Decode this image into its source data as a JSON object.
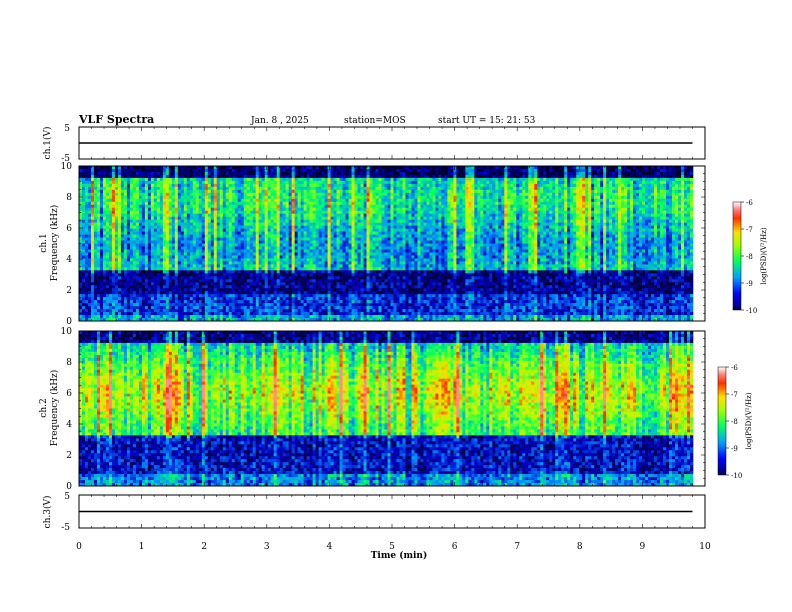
{
  "header": {
    "title": "VLF Spectra",
    "date": "Jan. 8 , 2025",
    "station": "station=MOS",
    "start": "start UT = 15: 21: 53"
  },
  "chart_data": [
    {
      "id": "ch1_voltage",
      "type": "line",
      "ylabel": "ch.1(V)",
      "ylim": [
        -5,
        5
      ],
      "yticks": [
        "5",
        "-5"
      ],
      "x": [
        0,
        9.8
      ],
      "y": [
        0,
        0
      ]
    },
    {
      "id": "ch1_spectrogram",
      "type": "heatmap",
      "ylabel_top": "ch.1",
      "ylabel": "Frequency (kHz)",
      "ylim": [
        0,
        10
      ],
      "yticks": [
        "0",
        "2",
        "4",
        "6",
        "8",
        "10"
      ],
      "x_range": [
        0,
        9.8
      ],
      "colorbar": {
        "label": "log(PSD)(V²/Hz)",
        "range": [
          -10,
          -6
        ],
        "ticks": [
          "-6",
          "-7",
          "-8",
          "-9",
          "-10"
        ]
      }
    },
    {
      "id": "ch2_spectrogram",
      "type": "heatmap",
      "ylabel_top": "ch.2",
      "ylabel": "Frequency (kHz)",
      "ylim": [
        0,
        10
      ],
      "yticks": [
        "0",
        "2",
        "4",
        "6",
        "8",
        "10"
      ],
      "x_range": [
        0,
        9.8
      ],
      "colorbar": {
        "label": "log(PSD)(V²/Hz)",
        "range": [
          -10,
          -6
        ],
        "ticks": [
          "-6",
          "-7",
          "-8",
          "-9",
          "-10"
        ]
      }
    },
    {
      "id": "ch3_voltage",
      "type": "line",
      "ylabel": "ch.3(V)",
      "ylim": [
        -5,
        5
      ],
      "yticks": [
        "5",
        "-5"
      ],
      "x": [
        0,
        9.8
      ],
      "y": [
        0,
        0
      ]
    }
  ],
  "xaxis": {
    "label": "Time (min)",
    "xlim": [
      0,
      10
    ],
    "ticks": [
      "0",
      "1",
      "2",
      "3",
      "4",
      "5",
      "6",
      "7",
      "8",
      "9",
      "10"
    ]
  }
}
